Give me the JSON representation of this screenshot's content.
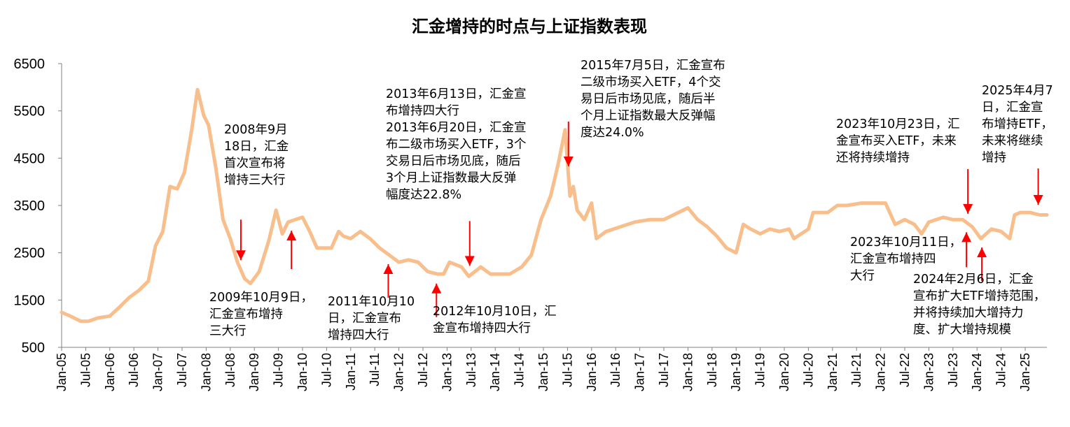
{
  "chart_data": {
    "type": "line",
    "title": "汇金增持的时点与上证指数表现",
    "xlabel": "",
    "ylabel": "",
    "ylim": [
      500,
      6500
    ],
    "yticks": [
      6500,
      5500,
      4500,
      3500,
      2500,
      1500,
      500
    ],
    "grid": false,
    "line_color": "#F8BE8C",
    "arrow_color": "#FF0000",
    "xtick_labels": [
      "Jan-05",
      "Jul-05",
      "Jan-06",
      "Jul-06",
      "Jan-07",
      "Jul-07",
      "Jan-08",
      "Jul-08",
      "Jan-09",
      "Jul-09",
      "Jan-10",
      "Jul-10",
      "Jan-11",
      "Jul-11",
      "Jan-12",
      "Jul-12",
      "Jan-13",
      "Jul-13",
      "Jan-14",
      "Jul-14",
      "Jan-15",
      "Jul-15",
      "Jan-16",
      "Jul-16",
      "Jan-17",
      "Jul-17",
      "Jan-18",
      "Jul-18",
      "Jan-19",
      "Jul-19",
      "Jan-20",
      "Jul-20",
      "Jan-21",
      "Jul-21",
      "Jan-22",
      "Jul-22",
      "Jan-23",
      "Jul-23",
      "Jan-24",
      "Jul-24",
      "Jan-25"
    ],
    "series": [
      {
        "x": [
          2005.0,
          2005.2,
          2005.4,
          2005.55,
          2005.75,
          2006.0,
          2006.2,
          2006.4,
          2006.6,
          2006.8,
          2006.95,
          2007.1,
          2007.25,
          2007.4,
          2007.55,
          2007.7,
          2007.82,
          2007.95,
          2008.05,
          2008.2,
          2008.35,
          2008.5,
          2008.65,
          2008.8,
          2008.92,
          2009.1,
          2009.3,
          2009.45,
          2009.58,
          2009.7,
          2009.85,
          2010.0,
          2010.15,
          2010.3,
          2010.45,
          2010.6,
          2010.75,
          2010.85,
          2011.0,
          2011.2,
          2011.4,
          2011.6,
          2011.8,
          2012.0,
          2012.2,
          2012.4,
          2012.6,
          2012.8,
          2012.93,
          2013.05,
          2013.3,
          2013.45,
          2013.7,
          2013.9,
          2014.1,
          2014.3,
          2014.55,
          2014.75,
          2014.95,
          2015.15,
          2015.3,
          2015.45,
          2015.55,
          2015.62,
          2015.7,
          2015.85,
          2016.0,
          2016.1,
          2016.3,
          2016.6,
          2016.9,
          2017.2,
          2017.5,
          2017.8,
          2018.0,
          2018.2,
          2018.4,
          2018.6,
          2018.8,
          2019.0,
          2019.15,
          2019.3,
          2019.5,
          2019.7,
          2019.9,
          2020.1,
          2020.2,
          2020.5,
          2020.6,
          2020.9,
          2021.1,
          2021.3,
          2021.6,
          2021.9,
          2022.1,
          2022.3,
          2022.5,
          2022.7,
          2022.85,
          2023.0,
          2023.3,
          2023.5,
          2023.7,
          2023.9,
          2024.08,
          2024.3,
          2024.5,
          2024.68,
          2024.78,
          2024.9,
          2025.1,
          2025.3,
          2025.45
        ],
        "values": [
          1240,
          1150,
          1050,
          1050,
          1120,
          1160,
          1350,
          1550,
          1700,
          1900,
          2650,
          2950,
          3900,
          3850,
          4200,
          5100,
          5950,
          5400,
          5200,
          4300,
          3200,
          2800,
          2300,
          1950,
          1850,
          2100,
          2750,
          3400,
          2900,
          3150,
          3200,
          3250,
          2950,
          2600,
          2600,
          2600,
          2950,
          2850,
          2800,
          2950,
          2800,
          2600,
          2450,
          2300,
          2350,
          2300,
          2100,
          2050,
          2050,
          2300,
          2200,
          2000,
          2200,
          2050,
          2050,
          2050,
          2200,
          2450,
          3200,
          3700,
          4350,
          5100,
          3700,
          3900,
          3400,
          3200,
          3550,
          2800,
          2950,
          3050,
          3150,
          3200,
          3200,
          3350,
          3450,
          3200,
          3050,
          2850,
          2600,
          2500,
          3100,
          3000,
          2900,
          3000,
          2950,
          3000,
          2800,
          3000,
          3350,
          3350,
          3500,
          3500,
          3550,
          3550,
          3550,
          3100,
          3200,
          3100,
          2900,
          3150,
          3250,
          3200,
          3200,
          3050,
          2800,
          3000,
          2950,
          2800,
          3300,
          3350,
          3350,
          3300,
          3300
        ]
      }
    ],
    "events": [
      {
        "date": 2008.72,
        "dir": "down",
        "lines": [
          "2008年9月",
          "18日，汇金",
          "首次宣布将",
          "增持三大行"
        ]
      },
      {
        "date": 2009.77,
        "dir": "up",
        "lines": [
          "2009年10月9日，",
          "汇金宣布增持",
          "三大行"
        ]
      },
      {
        "date": 2011.78,
        "dir": "up",
        "lines": [
          "2011年10月10",
          "日，汇金宣布",
          "增持四大行"
        ]
      },
      {
        "date": 2012.78,
        "dir": "up",
        "lines": [
          "2012年10月10日，汇",
          "金宣布增持四大行"
        ]
      },
      {
        "date": 2013.47,
        "dir": "down",
        "lines": [
          "2013年6月13日，汇金宣",
          "布增持四大行",
          "2013年6月20日，汇金宣",
          "布二级市场买入ETF，3个",
          "交易日后市场见底，随后",
          "3个月上证指数最大反弹",
          "幅度达22.8%"
        ]
      },
      {
        "date": 2015.52,
        "dir": "down",
        "lines": [
          "2015年7月5日，汇金宣布",
          "二级市场买入ETF，4个交",
          "易日后市场见底，随后半",
          "个月上证指数最大反弹幅",
          "度达24.0%"
        ]
      },
      {
        "date": 2023.78,
        "dir": "up",
        "lines": [
          "2023年10月11日，",
          "汇金宣布增持四",
          "大行"
        ]
      },
      {
        "date": 2023.81,
        "dir": "down",
        "lines": [
          "2023年10月23日，汇",
          "金宣布买入ETF，未来",
          "还将持续增持"
        ]
      },
      {
        "date": 2024.1,
        "dir": "up",
        "lines": [
          "2024年2月6日，汇金",
          "宣布扩大ETF增持范围，",
          "并将持续加大增持力",
          "度、扩大增持规模"
        ]
      },
      {
        "date": 2025.27,
        "dir": "down",
        "lines": [
          "2025年4月7",
          "日，汇金宣",
          "布增持ETF，",
          "未来将继续",
          "增持"
        ]
      }
    ]
  }
}
